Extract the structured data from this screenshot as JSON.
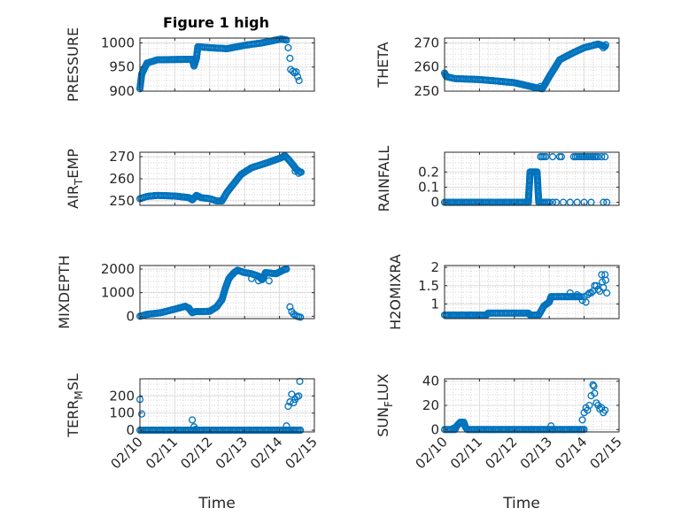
{
  "figure_title": "Figure 1 high",
  "x_ticks": [
    "02/10",
    "02/11",
    "02/12",
    "02/13",
    "02/14",
    "02/15"
  ],
  "x_label": "Time",
  "colors": {
    "marker": "#0072BD",
    "axis": "#262626",
    "grid": "#c8c8c8"
  },
  "chart_data": [
    {
      "type": "scatter",
      "id": "pressure",
      "ylabel": "PRESSURE",
      "xlim": [
        0,
        5
      ],
      "ylim": [
        900,
        1010
      ],
      "yticks": [
        900,
        950,
        1000
      ],
      "ytick_labels": [
        "900",
        "950",
        "1000"
      ],
      "grid": true,
      "xlabel": "",
      "segments": [
        [
          0.0,
          905
        ],
        [
          0.05,
          935
        ],
        [
          0.2,
          958
        ],
        [
          0.5,
          965
        ],
        [
          1.5,
          966
        ],
        [
          1.55,
          952
        ],
        [
          1.62,
          968
        ],
        [
          1.66,
          992
        ],
        [
          2.0,
          990
        ],
        [
          2.5,
          988
        ],
        [
          3.0,
          995
        ],
        [
          3.5,
          1000
        ],
        [
          4.05,
          1008
        ],
        [
          4.2,
          1006
        ]
      ],
      "points": [
        [
          4.25,
          990
        ],
        [
          4.3,
          968
        ],
        [
          4.32,
          945
        ],
        [
          4.38,
          941
        ],
        [
          4.43,
          938
        ],
        [
          4.48,
          940
        ],
        [
          4.52,
          930
        ],
        [
          4.56,
          922
        ]
      ]
    },
    {
      "type": "scatter",
      "id": "theta",
      "ylabel": "THETA",
      "xlim": [
        0,
        5
      ],
      "ylim": [
        250,
        272
      ],
      "yticks": [
        250,
        260,
        270
      ],
      "ytick_labels": [
        "250",
        "260",
        "270"
      ],
      "grid": true,
      "xlabel": "",
      "segments": [
        [
          0.0,
          257.5
        ],
        [
          0.05,
          256
        ],
        [
          0.3,
          255.2
        ],
        [
          1.0,
          254.8
        ],
        [
          1.5,
          254.2
        ],
        [
          2.0,
          253.5
        ],
        [
          2.3,
          252.5
        ],
        [
          2.6,
          251.5
        ],
        [
          2.8,
          251
        ],
        [
          3.0,
          256
        ],
        [
          3.3,
          263
        ],
        [
          3.7,
          266
        ],
        [
          4.0,
          268
        ],
        [
          4.4,
          269.5
        ],
        [
          4.5,
          269
        ],
        [
          4.6,
          268.5
        ]
      ],
      "points": [
        [
          2.75,
          252
        ],
        [
          4.55,
          268
        ],
        [
          4.62,
          269.2
        ]
      ]
    },
    {
      "type": "scatter",
      "id": "air_temp",
      "ylabel": "AIR_TEMP",
      "xlim": [
        0,
        5
      ],
      "ylim": [
        248,
        272
      ],
      "yticks": [
        250,
        260,
        270
      ],
      "ytick_labels": [
        "250",
        "260",
        "270"
      ],
      "grid": true,
      "xlabel": "",
      "segments": [
        [
          0.0,
          251
        ],
        [
          0.2,
          252
        ],
        [
          0.5,
          252.5
        ],
        [
          1.0,
          252.2
        ],
        [
          1.4,
          251.5
        ],
        [
          1.5,
          250.5
        ],
        [
          1.62,
          252.5
        ],
        [
          1.75,
          251.5
        ],
        [
          2.0,
          251
        ],
        [
          2.2,
          250
        ],
        [
          2.35,
          250
        ],
        [
          2.5,
          254
        ],
        [
          2.9,
          262
        ],
        [
          3.2,
          265
        ],
        [
          3.6,
          267
        ],
        [
          4.05,
          269.5
        ],
        [
          4.15,
          270.5
        ],
        [
          4.3,
          268
        ],
        [
          4.5,
          264
        ],
        [
          4.6,
          263
        ]
      ],
      "points": [
        [
          4.45,
          263.5
        ],
        [
          4.55,
          262.5
        ],
        [
          4.62,
          263
        ]
      ]
    },
    {
      "type": "scatter",
      "id": "rainfall",
      "ylabel": "RAINFALL",
      "xlim": [
        0,
        5
      ],
      "ylim": [
        -0.02,
        0.33
      ],
      "yticks": [
        0,
        0.1,
        0.2
      ],
      "ytick_labels": [
        "0",
        "0.1",
        "0.2"
      ],
      "grid": true,
      "xlabel": "",
      "segments": [
        [
          0.0,
          0
        ],
        [
          2.4,
          0
        ],
        [
          2.45,
          0.2
        ],
        [
          2.65,
          0.2
        ],
        [
          2.7,
          0
        ],
        [
          3.0,
          0
        ]
      ],
      "points": [
        [
          2.75,
          0.3
        ],
        [
          2.8,
          0.3
        ],
        [
          2.85,
          0.3
        ],
        [
          2.9,
          0.3
        ],
        [
          3.1,
          0.3
        ],
        [
          3.3,
          0.3
        ],
        [
          3.35,
          0.3
        ],
        [
          3.1,
          0
        ],
        [
          3.2,
          0
        ],
        [
          3.4,
          0
        ],
        [
          3.6,
          0
        ],
        [
          3.7,
          0.3
        ],
        [
          3.75,
          0.3
        ],
        [
          3.8,
          0.3
        ],
        [
          3.85,
          0.3
        ],
        [
          3.9,
          0.3
        ],
        [
          3.95,
          0.3
        ],
        [
          4.0,
          0.3
        ],
        [
          4.05,
          0.3
        ],
        [
          4.1,
          0.3
        ],
        [
          4.15,
          0.3
        ],
        [
          4.2,
          0.3
        ],
        [
          4.25,
          0.3
        ],
        [
          4.3,
          0.3
        ],
        [
          3.8,
          0
        ],
        [
          4.0,
          0
        ],
        [
          4.2,
          0
        ],
        [
          4.35,
          0.3
        ],
        [
          4.4,
          0.3
        ],
        [
          4.5,
          0.3
        ],
        [
          4.55,
          0
        ],
        [
          4.6,
          0.3
        ],
        [
          4.65,
          0
        ]
      ]
    },
    {
      "type": "scatter",
      "id": "mixdepth",
      "ylabel": "MIXDEPTH",
      "xlim": [
        0,
        5
      ],
      "ylim": [
        -100,
        2150
      ],
      "yticks": [
        0,
        1000,
        2000
      ],
      "ytick_labels": [
        "0",
        "1000",
        "2000"
      ],
      "grid": true,
      "xlabel": "",
      "segments": [
        [
          0.0,
          0
        ],
        [
          0.2,
          80
        ],
        [
          0.6,
          150
        ],
        [
          1.0,
          300
        ],
        [
          1.3,
          420
        ],
        [
          1.4,
          350
        ],
        [
          1.5,
          150
        ],
        [
          1.6,
          200
        ],
        [
          1.8,
          200
        ],
        [
          2.0,
          210
        ],
        [
          2.2,
          400
        ],
        [
          2.35,
          700
        ],
        [
          2.45,
          1200
        ],
        [
          2.55,
          1600
        ],
        [
          2.7,
          1850
        ],
        [
          2.8,
          1950
        ],
        [
          3.0,
          1850
        ],
        [
          3.2,
          1800
        ],
        [
          3.4,
          1700
        ],
        [
          3.5,
          1550
        ],
        [
          3.6,
          1850
        ],
        [
          3.9,
          1800
        ],
        [
          4.1,
          1950
        ],
        [
          4.2,
          2000
        ]
      ],
      "points": [
        [
          3.2,
          1600
        ],
        [
          3.4,
          1500
        ],
        [
          3.7,
          1500
        ],
        [
          4.3,
          400
        ],
        [
          4.35,
          200
        ],
        [
          4.4,
          100
        ],
        [
          4.45,
          50
        ],
        [
          4.5,
          0
        ],
        [
          4.55,
          -20
        ],
        [
          4.6,
          -40
        ]
      ]
    },
    {
      "type": "scatter",
      "id": "h2omixra",
      "ylabel": "H2OMIXRA",
      "xlim": [
        0,
        5
      ],
      "ylim": [
        0.6,
        2.05
      ],
      "yticks": [
        1,
        1.5,
        2
      ],
      "ytick_labels": [
        "1",
        "1.5",
        "2"
      ],
      "grid": true,
      "xlabel": "",
      "segments": [
        [
          0.0,
          0.7
        ],
        [
          1.2,
          0.7
        ],
        [
          1.25,
          0.75
        ],
        [
          2.0,
          0.75
        ],
        [
          2.4,
          0.75
        ],
        [
          2.45,
          0.7
        ],
        [
          2.7,
          0.7
        ],
        [
          2.85,
          0.95
        ],
        [
          3.0,
          1.05
        ],
        [
          3.05,
          1.2
        ],
        [
          3.5,
          1.2
        ],
        [
          3.7,
          1.2
        ],
        [
          3.9,
          1.2
        ]
      ],
      "points": [
        [
          3.6,
          1.3
        ],
        [
          3.8,
          1.25
        ],
        [
          3.95,
          1.1
        ],
        [
          4.0,
          1.2
        ],
        [
          4.05,
          1.05
        ],
        [
          4.1,
          1.25
        ],
        [
          4.15,
          1.3
        ],
        [
          4.2,
          1.3
        ],
        [
          4.25,
          1.35
        ],
        [
          4.3,
          1.5
        ],
        [
          4.35,
          1.5
        ],
        [
          4.4,
          1.4
        ],
        [
          4.45,
          1.35
        ],
        [
          4.5,
          1.8
        ],
        [
          4.52,
          1.6
        ],
        [
          4.55,
          1.45
        ],
        [
          4.6,
          1.8
        ],
        [
          4.62,
          1.65
        ],
        [
          4.65,
          1.3
        ]
      ]
    },
    {
      "type": "scatter",
      "id": "terr_msl",
      "ylabel": "TERR_MSL",
      "xlim": [
        0,
        5
      ],
      "ylim": [
        -10,
        300
      ],
      "yticks": [
        0,
        100,
        200
      ],
      "ytick_labels": [
        "0",
        "100",
        "200"
      ],
      "grid": true,
      "xlabel": "Time",
      "segments": [
        [
          0.0,
          0
        ],
        [
          4.2,
          0
        ],
        [
          4.6,
          0
        ]
      ],
      "points": [
        [
          0.0,
          180
        ],
        [
          0.05,
          95
        ],
        [
          1.5,
          60
        ],
        [
          1.55,
          20
        ],
        [
          1.6,
          5
        ],
        [
          4.2,
          25
        ],
        [
          4.25,
          140
        ],
        [
          4.3,
          165
        ],
        [
          4.35,
          210
        ],
        [
          4.4,
          160
        ],
        [
          4.45,
          180
        ],
        [
          4.5,
          195
        ],
        [
          4.55,
          200
        ],
        [
          4.58,
          285
        ]
      ]
    },
    {
      "type": "scatter",
      "id": "sun_flux",
      "ylabel": "SUN_FLUX",
      "xlim": [
        0,
        5
      ],
      "ylim": [
        -2,
        42
      ],
      "yticks": [
        0,
        20,
        40
      ],
      "ytick_labels": [
        "0",
        "20",
        "40"
      ],
      "grid": true,
      "xlabel": "Time",
      "segments": [
        [
          0.0,
          0
        ],
        [
          0.3,
          0
        ],
        [
          0.35,
          3
        ],
        [
          0.45,
          6
        ],
        [
          0.55,
          6
        ],
        [
          0.6,
          2
        ],
        [
          0.65,
          0
        ],
        [
          3.8,
          0
        ],
        [
          4.0,
          0
        ]
      ],
      "points": [
        [
          0.25,
          1
        ],
        [
          2.5,
          0
        ],
        [
          3.05,
          3
        ],
        [
          3.1,
          0
        ],
        [
          3.95,
          8
        ],
        [
          4.0,
          14
        ],
        [
          4.05,
          18
        ],
        [
          4.1,
          16
        ],
        [
          4.15,
          20
        ],
        [
          4.2,
          28
        ],
        [
          4.25,
          37
        ],
        [
          4.28,
          36
        ],
        [
          4.3,
          30
        ],
        [
          4.35,
          22
        ],
        [
          4.4,
          20
        ],
        [
          4.45,
          17
        ],
        [
          4.5,
          18
        ],
        [
          4.55,
          14
        ],
        [
          4.6,
          16
        ]
      ]
    }
  ],
  "panels": [
    {
      "id": "pressure",
      "ylabel_text": "PRESSURE",
      "ylabel_sub": ""
    },
    {
      "id": "theta",
      "ylabel_text": "THETA",
      "ylabel_sub": ""
    },
    {
      "id": "air_temp",
      "ylabel_text": "AIR",
      "ylabel_sub": "T",
      "ylabel_rest": "EMP"
    },
    {
      "id": "rainfall",
      "ylabel_text": "RAINFALL",
      "ylabel_sub": ""
    },
    {
      "id": "mixdepth",
      "ylabel_text": "MIXDEPTH",
      "ylabel_sub": ""
    },
    {
      "id": "h2omixra",
      "ylabel_text": "H2OMIXRA",
      "ylabel_sub": ""
    },
    {
      "id": "terr_msl",
      "ylabel_text": "TERR",
      "ylabel_sub": "M",
      "ylabel_rest": "SL"
    },
    {
      "id": "sun_flux",
      "ylabel_text": "SUN",
      "ylabel_sub": "F",
      "ylabel_rest": "LUX"
    }
  ]
}
